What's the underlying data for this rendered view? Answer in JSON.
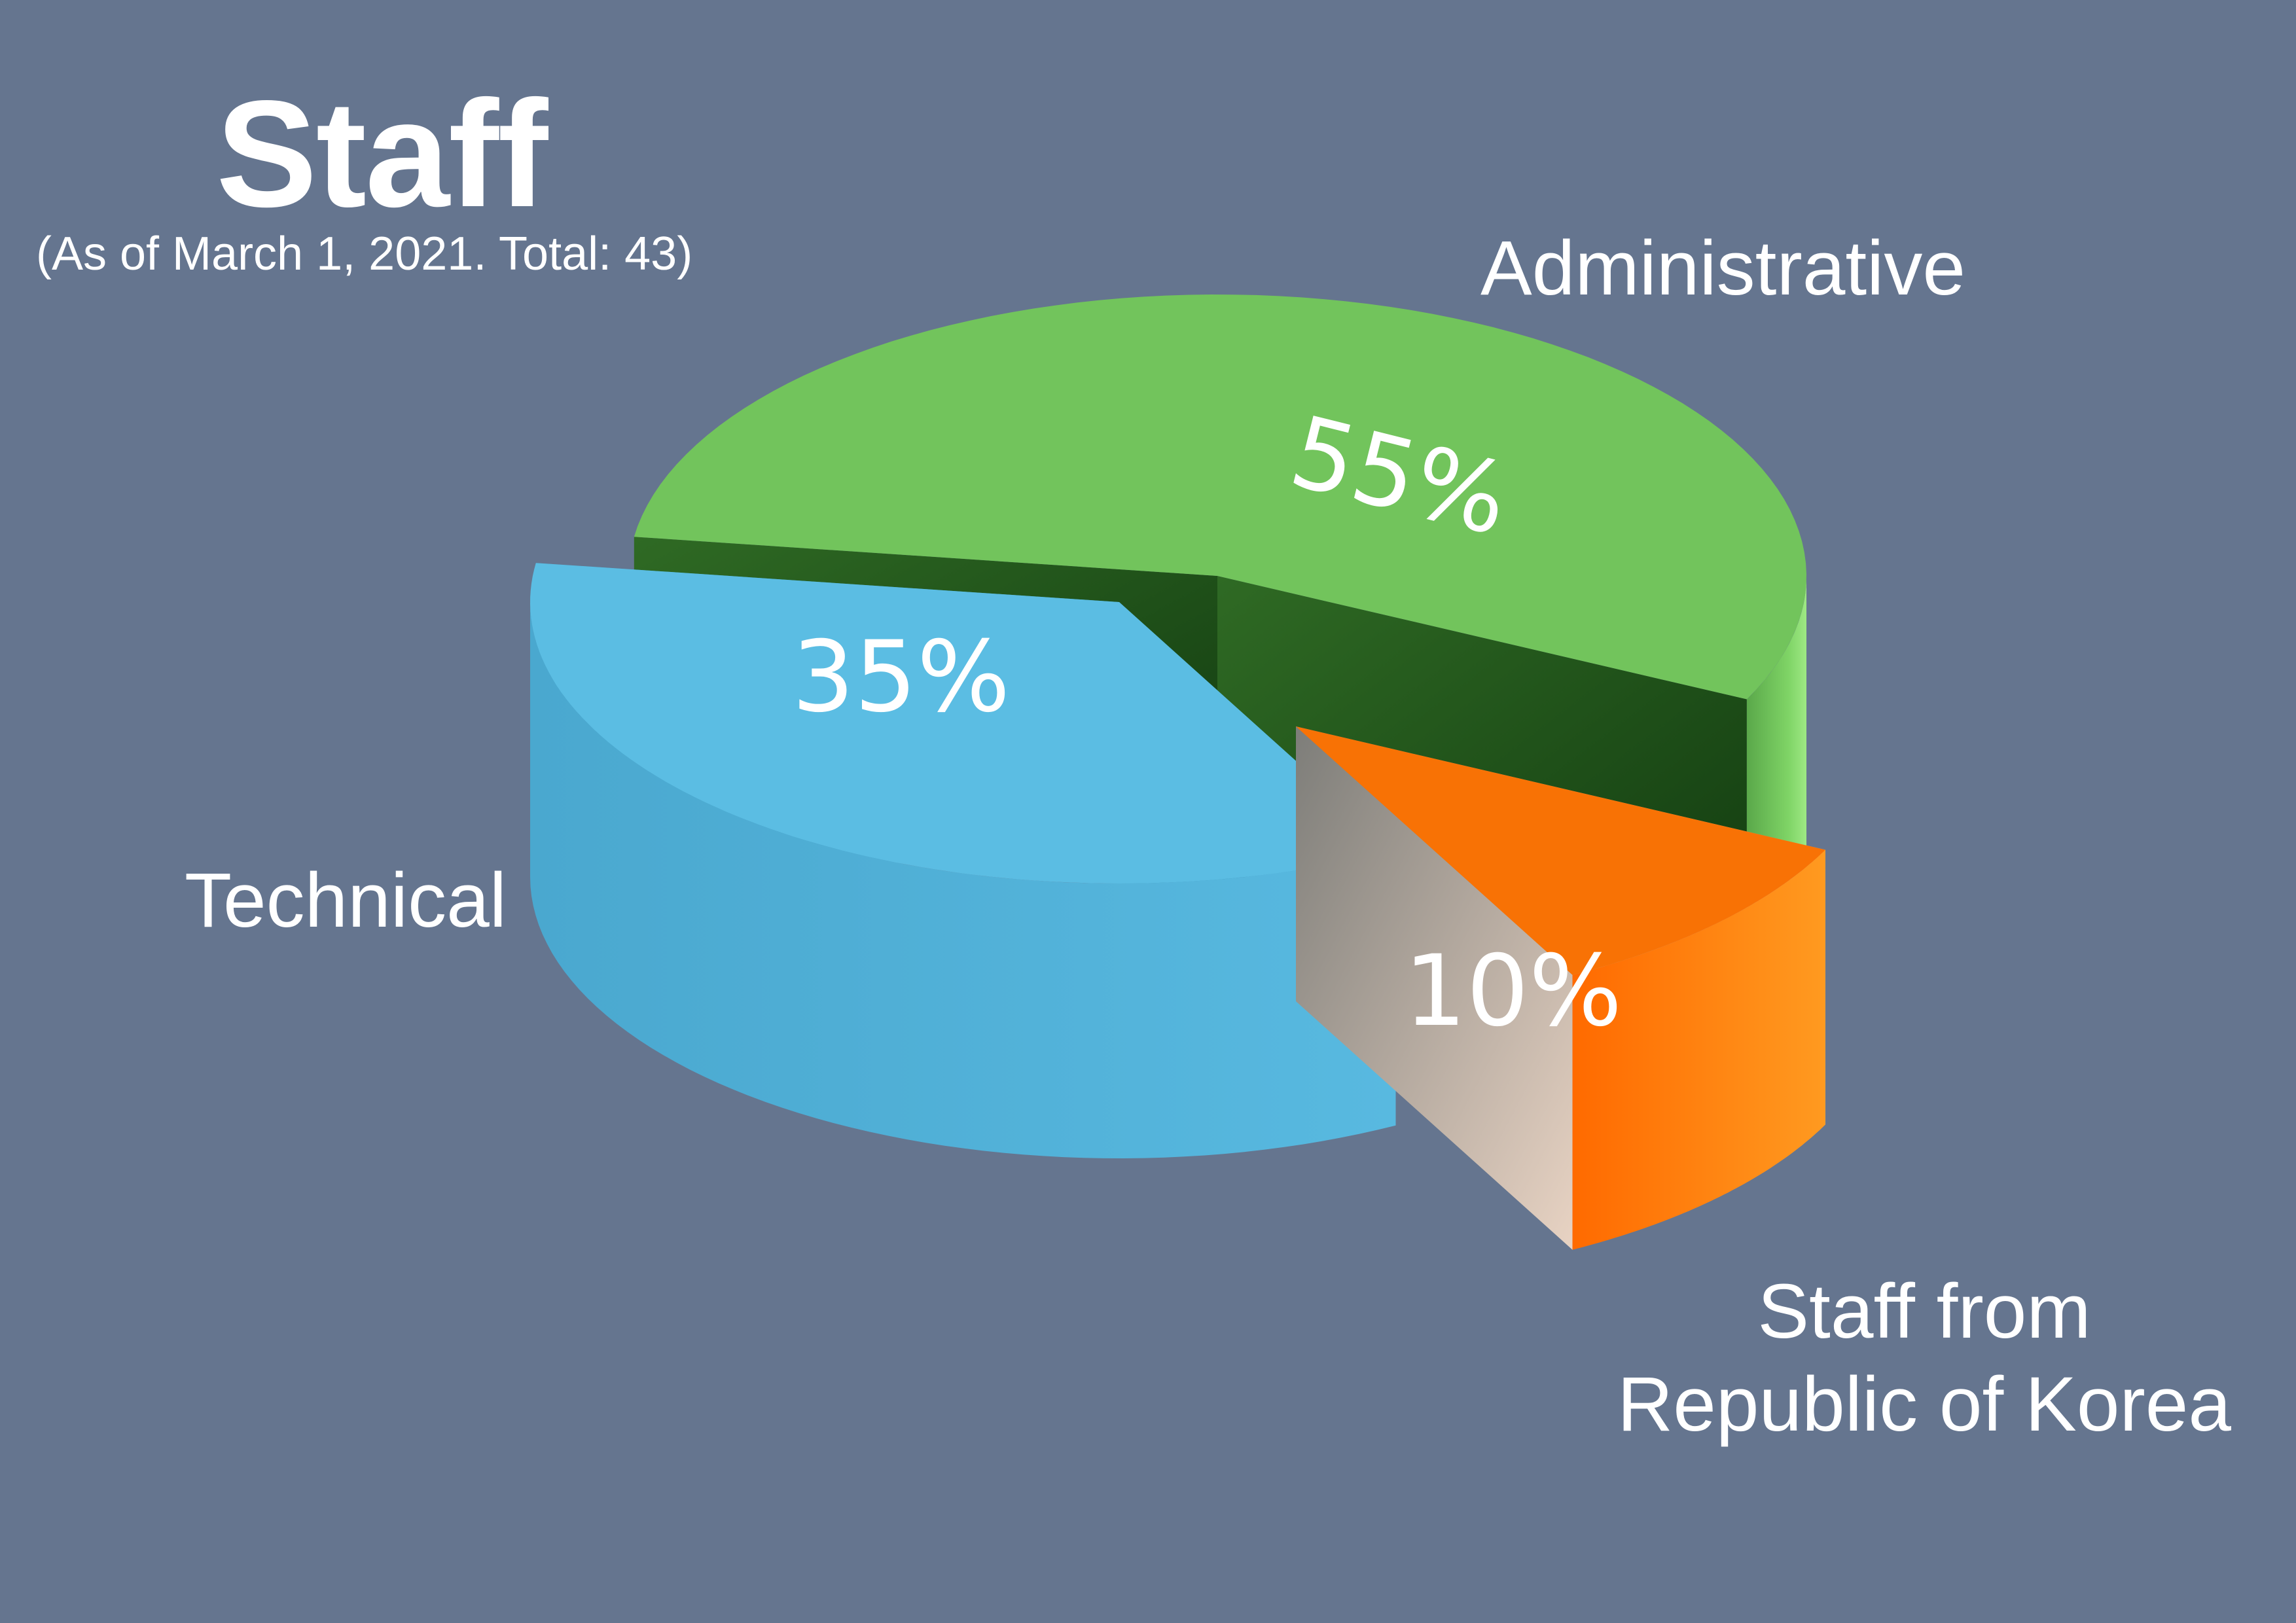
{
  "chart_data": {
    "type": "pie",
    "title": "Staff",
    "subtitle": "(As of March 1, 2021. Total: 43)",
    "categories": [
      "Administrative",
      "Technical",
      "Staff from Republic of Korea"
    ],
    "category_lines": [
      [
        "Administrative"
      ],
      [
        "Technical"
      ],
      [
        "Staff from",
        "Republic of Korea"
      ]
    ],
    "values": [
      55,
      35,
      10
    ],
    "value_labels": [
      "55%",
      "35%",
      "10%"
    ],
    "total": 43,
    "colors": [
      "#72c45c",
      "#5bbde3",
      "#f87205"
    ],
    "style": "3d-exploded"
  }
}
